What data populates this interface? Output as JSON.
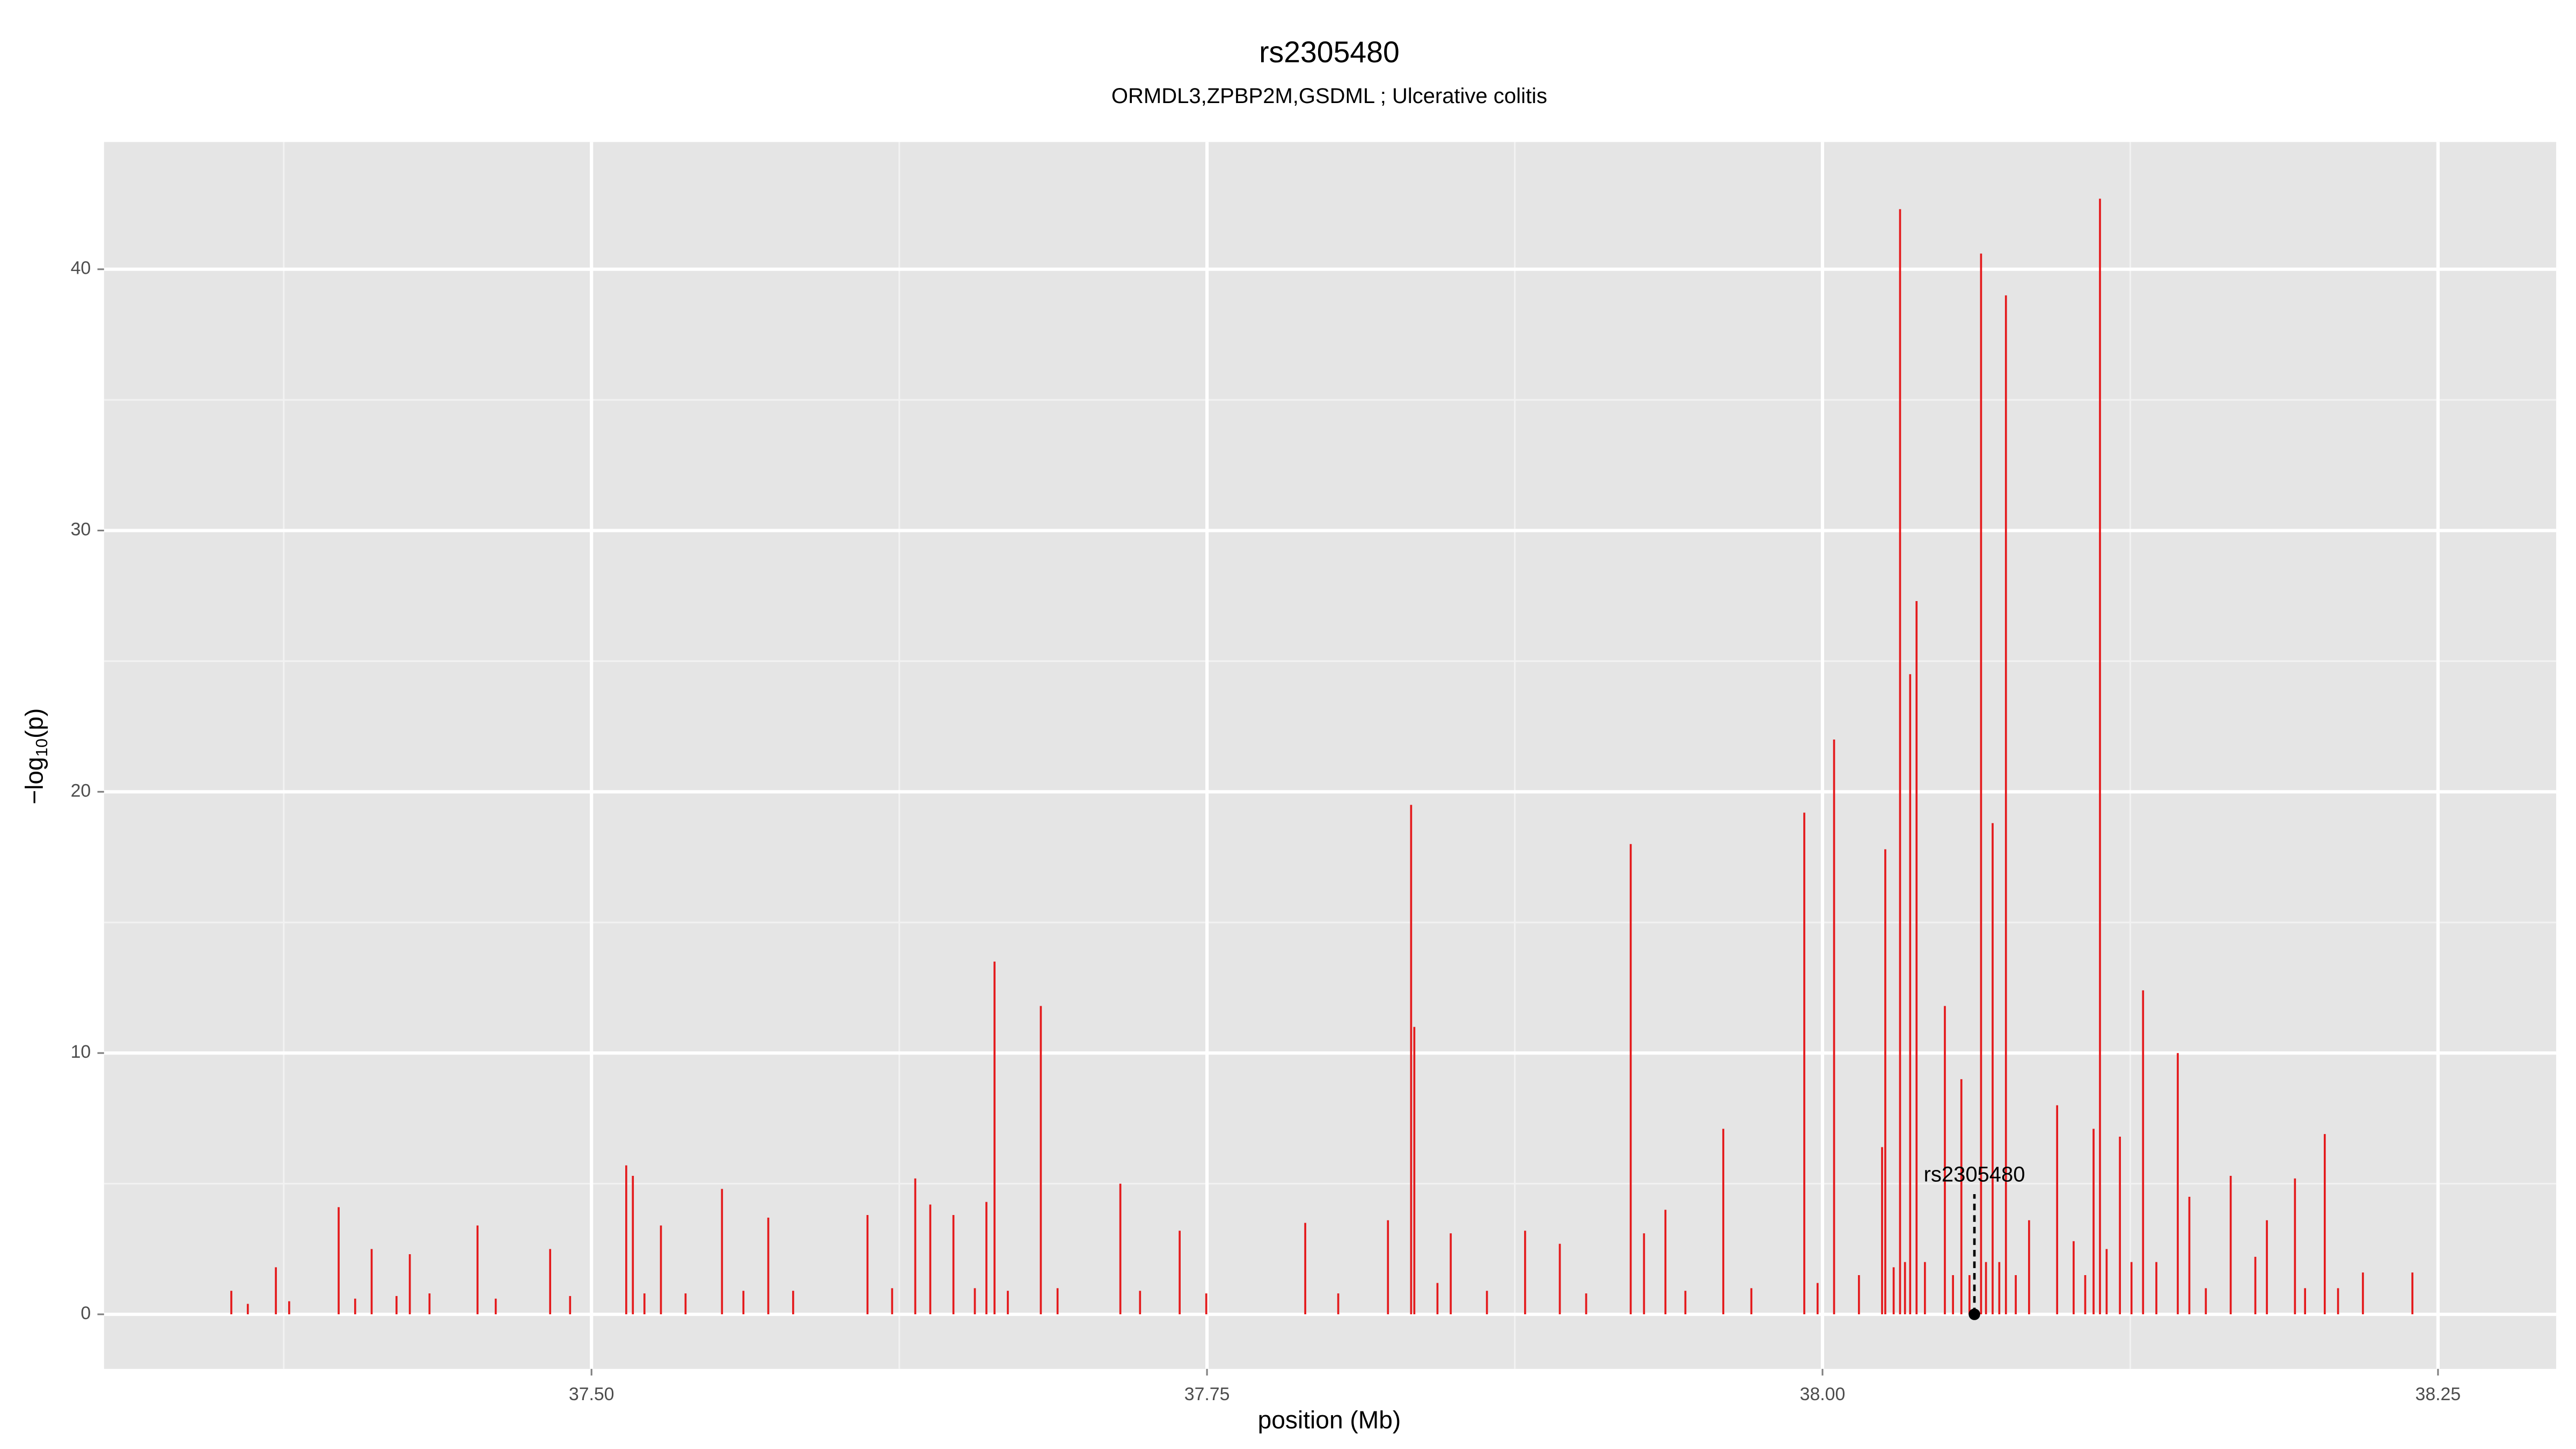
{
  "chart_data": {
    "type": "spike",
    "title": "rs2305480",
    "subtitle": "ORMDL3,ZPBP2M,GSDML ; Ulcerative colitis",
    "xlabel": "position (Mb)",
    "ylabel": {
      "base": "−log",
      "sub": "10",
      "tail": "(p)"
    },
    "color": "#e41a1c",
    "x": [
      37.347,
      37.3537,
      37.3604,
      37.3718,
      37.3772,
      37.3973,
      37.404,
      37.4107,
      37.4208,
      37.4262,
      37.4342,
      37.4537,
      37.4611,
      37.4832,
      37.4913,
      37.5141,
      37.5168,
      37.5215,
      37.5282,
      37.5382,
      37.553,
      37.5617,
      37.5718,
      37.5819,
      37.6121,
      37.6221,
      37.6315,
      37.6376,
      37.647,
      37.6557,
      37.6604,
      37.6637,
      37.6691,
      37.6825,
      37.6893,
      37.7148,
      37.7228,
      37.7389,
      37.7497,
      37.7899,
      37.8033,
      37.8235,
      37.8329,
      37.8342,
      37.8436,
      37.849,
      37.8637,
      37.8792,
      37.8933,
      37.904,
      37.9221,
      37.9275,
      37.9362,
      37.9443,
      37.9597,
      37.9711,
      37.9926,
      37.998,
      38.0047,
      38.0148,
      38.0242,
      38.0255,
      38.0289,
      38.0315,
      38.0335,
      38.0356,
      38.0382,
      38.0416,
      38.0497,
      38.053,
      38.0564,
      38.0597,
      38.0644,
      38.0664,
      38.0691,
      38.0718,
      38.0745,
      38.0785,
      38.0839,
      38.0953,
      38.102,
      38.1067,
      38.1101,
      38.1127,
      38.1154,
      38.1208,
      38.1255,
      38.1302,
      38.1356,
      38.1443,
      38.149,
      38.1557,
      38.1658,
      38.1758,
      38.1805,
      38.1919,
      38.196,
      38.204,
      38.2094,
      38.2195,
      38.2396,
      38.2537
    ],
    "values": [
      0,
      0.9,
      0.4,
      1.8,
      0.5,
      4.1,
      0.6,
      2.5,
      0.7,
      2.3,
      0.8,
      3.4,
      0.6,
      2.5,
      0.7,
      5.7,
      5.3,
      0.8,
      3.4,
      0.8,
      4.8,
      0.9,
      3.7,
      0.9,
      3.8,
      1.0,
      5.2,
      4.2,
      3.8,
      1.0,
      4.3,
      13.5,
      0.9,
      11.8,
      1.0,
      5.0,
      0.9,
      3.2,
      0.8,
      3.5,
      0.8,
      3.6,
      19.5,
      11.0,
      1.2,
      3.1,
      0.9,
      3.2,
      2.7,
      0.8,
      18.0,
      3.1,
      4.0,
      0.9,
      7.1,
      1.0,
      19.2,
      1.2,
      22.0,
      1.5,
      6.4,
      17.8,
      1.8,
      42.3,
      2.0,
      24.5,
      27.3,
      2.0,
      11.8,
      1.5,
      9.0,
      1.5,
      40.6,
      2.0,
      18.8,
      2.0,
      39.0,
      1.5,
      3.6,
      8.0,
      2.8,
      1.5,
      7.1,
      42.7,
      2.5,
      6.8,
      2.0,
      12.4,
      2.0,
      10.0,
      4.5,
      1.0,
      5.3,
      2.2,
      3.6,
      5.2,
      1.0,
      6.9,
      1.0,
      1.6,
      1.6,
      0
    ],
    "highlight": {
      "label": "rs2305480",
      "x": 38.0617,
      "y": 0
    },
    "xlim": [
      37.302,
      38.298
    ],
    "ylim": [
      -2.09,
      44.87
    ],
    "xticks": [
      {
        "value": 37.5,
        "label": "37.50"
      },
      37.75,
      {
        "value": 38,
        "label": "38.00"
      },
      38.25
    ],
    "yticks": [
      0,
      10,
      20,
      30,
      40
    ],
    "xminor": [
      37.375,
      37.625,
      37.875,
      38.125
    ],
    "yminor": [
      5,
      15,
      25,
      35
    ],
    "grid": true
  }
}
